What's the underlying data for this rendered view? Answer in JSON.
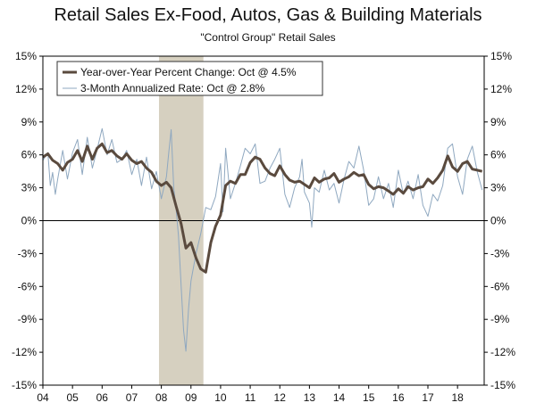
{
  "chart_data": {
    "type": "line",
    "title": "Retail Sales Ex-Food, Autos, Gas & Building Materials",
    "subtitle": "\"Control Group\" Retail Sales",
    "xlabel": "",
    "ylabel": "",
    "x_range": [
      2004.0,
      2018.9
    ],
    "ylim": [
      -15,
      15
    ],
    "y_ticks": [
      15,
      12,
      9,
      6,
      3,
      0,
      -3,
      -6,
      -9,
      -12,
      -15
    ],
    "y_tick_labels": [
      "15%",
      "12%",
      "9%",
      "6%",
      "3%",
      "0%",
      "-3%",
      "-6%",
      "-9%",
      "-12%",
      "-15%"
    ],
    "x_ticks": [
      2004,
      2005,
      2006,
      2007,
      2008,
      2009,
      2010,
      2011,
      2012,
      2013,
      2014,
      2015,
      2016,
      2017,
      2018
    ],
    "x_tick_labels": [
      "04",
      "05",
      "06",
      "07",
      "08",
      "09",
      "10",
      "11",
      "12",
      "13",
      "14",
      "15",
      "16",
      "17",
      "18"
    ],
    "recession_band": {
      "start": 2007.92,
      "end": 2009.42,
      "color": "#d6d0c0"
    },
    "zero_line": true,
    "legend_position": "top-left",
    "series": [
      {
        "name": "Year-over-Year Percent Change: Oct @ 4.5%",
        "color": "#5a4a3e",
        "width": 3,
        "points": [
          [
            2004.0,
            5.8
          ],
          [
            2004.17,
            6.1
          ],
          [
            2004.33,
            5.5
          ],
          [
            2004.5,
            5.2
          ],
          [
            2004.67,
            4.6
          ],
          [
            2004.83,
            5.3
          ],
          [
            2005.0,
            5.6
          ],
          [
            2005.17,
            6.4
          ],
          [
            2005.33,
            5.4
          ],
          [
            2005.5,
            6.8
          ],
          [
            2005.67,
            5.6
          ],
          [
            2005.83,
            6.6
          ],
          [
            2006.0,
            7.0
          ],
          [
            2006.17,
            6.2
          ],
          [
            2006.33,
            6.4
          ],
          [
            2006.5,
            5.9
          ],
          [
            2006.67,
            5.6
          ],
          [
            2006.83,
            6.1
          ],
          [
            2007.0,
            5.5
          ],
          [
            2007.17,
            5.2
          ],
          [
            2007.33,
            5.4
          ],
          [
            2007.5,
            4.8
          ],
          [
            2007.67,
            4.4
          ],
          [
            2007.83,
            3.6
          ],
          [
            2008.0,
            3.2
          ],
          [
            2008.17,
            3.5
          ],
          [
            2008.33,
            3.0
          ],
          [
            2008.5,
            1.3
          ],
          [
            2008.67,
            -0.3
          ],
          [
            2008.83,
            -2.5
          ],
          [
            2009.0,
            -2.0
          ],
          [
            2009.17,
            -3.4
          ],
          [
            2009.33,
            -4.4
          ],
          [
            2009.5,
            -4.7
          ],
          [
            2009.67,
            -2.0
          ],
          [
            2009.83,
            -0.5
          ],
          [
            2010.0,
            0.5
          ],
          [
            2010.17,
            3.2
          ],
          [
            2010.33,
            3.6
          ],
          [
            2010.5,
            3.4
          ],
          [
            2010.67,
            4.2
          ],
          [
            2010.83,
            4.2
          ],
          [
            2011.0,
            5.3
          ],
          [
            2011.17,
            5.8
          ],
          [
            2011.33,
            5.6
          ],
          [
            2011.5,
            4.8
          ],
          [
            2011.67,
            4.3
          ],
          [
            2011.83,
            4.1
          ],
          [
            2012.0,
            5.0
          ],
          [
            2012.17,
            4.2
          ],
          [
            2012.33,
            3.7
          ],
          [
            2012.5,
            3.5
          ],
          [
            2012.67,
            3.6
          ],
          [
            2012.83,
            3.3
          ],
          [
            2013.0,
            3.0
          ],
          [
            2013.17,
            3.9
          ],
          [
            2013.33,
            3.5
          ],
          [
            2013.5,
            3.8
          ],
          [
            2013.67,
            3.9
          ],
          [
            2013.83,
            4.3
          ],
          [
            2014.0,
            3.5
          ],
          [
            2014.17,
            3.8
          ],
          [
            2014.33,
            4.0
          ],
          [
            2014.5,
            4.4
          ],
          [
            2014.67,
            4.1
          ],
          [
            2014.83,
            4.2
          ],
          [
            2015.0,
            3.3
          ],
          [
            2015.17,
            2.9
          ],
          [
            2015.33,
            3.1
          ],
          [
            2015.5,
            3.0
          ],
          [
            2015.67,
            2.7
          ],
          [
            2015.83,
            2.4
          ],
          [
            2016.0,
            2.9
          ],
          [
            2016.17,
            2.5
          ],
          [
            2016.33,
            3.1
          ],
          [
            2016.5,
            2.8
          ],
          [
            2016.67,
            3.0
          ],
          [
            2016.83,
            3.1
          ],
          [
            2017.0,
            3.8
          ],
          [
            2017.17,
            3.4
          ],
          [
            2017.33,
            3.9
          ],
          [
            2017.5,
            4.6
          ],
          [
            2017.67,
            5.9
          ],
          [
            2017.83,
            4.9
          ],
          [
            2018.0,
            4.5
          ],
          [
            2018.17,
            5.2
          ],
          [
            2018.33,
            5.4
          ],
          [
            2018.5,
            4.7
          ],
          [
            2018.67,
            4.6
          ],
          [
            2018.83,
            4.5
          ]
        ]
      },
      {
        "name": "3-Month Annualized Rate: Oct @ 2.8%",
        "color": "#8fa8c0",
        "width": 1,
        "points": [
          [
            2004.0,
            5.5
          ],
          [
            2004.17,
            6.2
          ],
          [
            2004.25,
            3.2
          ],
          [
            2004.33,
            4.4
          ],
          [
            2004.42,
            2.4
          ],
          [
            2004.5,
            3.8
          ],
          [
            2004.67,
            6.4
          ],
          [
            2004.83,
            3.8
          ],
          [
            2005.0,
            6.2
          ],
          [
            2005.17,
            7.4
          ],
          [
            2005.33,
            4.2
          ],
          [
            2005.5,
            7.6
          ],
          [
            2005.67,
            4.8
          ],
          [
            2005.83,
            6.5
          ],
          [
            2006.0,
            8.4
          ],
          [
            2006.17,
            6.0
          ],
          [
            2006.33,
            7.4
          ],
          [
            2006.5,
            5.3
          ],
          [
            2006.67,
            5.6
          ],
          [
            2006.83,
            6.4
          ],
          [
            2007.0,
            4.2
          ],
          [
            2007.17,
            5.6
          ],
          [
            2007.33,
            3.2
          ],
          [
            2007.5,
            5.8
          ],
          [
            2007.67,
            2.9
          ],
          [
            2007.83,
            4.5
          ],
          [
            2008.0,
            2.0
          ],
          [
            2008.17,
            4.0
          ],
          [
            2008.25,
            6.2
          ],
          [
            2008.33,
            8.3
          ],
          [
            2008.42,
            3.0
          ],
          [
            2008.5,
            1.0
          ],
          [
            2008.58,
            -1.4
          ],
          [
            2008.67,
            -6.0
          ],
          [
            2008.75,
            -10.0
          ],
          [
            2008.83,
            -11.9
          ],
          [
            2008.92,
            -8.0
          ],
          [
            2009.0,
            -5.5
          ],
          [
            2009.17,
            -3.0
          ],
          [
            2009.33,
            -1.2
          ],
          [
            2009.5,
            1.2
          ],
          [
            2009.67,
            1.0
          ],
          [
            2009.83,
            2.2
          ],
          [
            2010.0,
            5.2
          ],
          [
            2010.08,
            0.8
          ],
          [
            2010.17,
            6.6
          ],
          [
            2010.33,
            2.0
          ],
          [
            2010.5,
            3.4
          ],
          [
            2010.67,
            5.0
          ],
          [
            2010.83,
            6.6
          ],
          [
            2011.0,
            6.1
          ],
          [
            2011.17,
            7.0
          ],
          [
            2011.33,
            3.4
          ],
          [
            2011.5,
            3.6
          ],
          [
            2011.67,
            4.8
          ],
          [
            2011.83,
            5.6
          ],
          [
            2012.0,
            6.6
          ],
          [
            2012.17,
            2.4
          ],
          [
            2012.33,
            1.2
          ],
          [
            2012.5,
            3.0
          ],
          [
            2012.67,
            4.0
          ],
          [
            2012.75,
            5.6
          ],
          [
            2012.83,
            2.6
          ],
          [
            2013.0,
            1.6
          ],
          [
            2013.08,
            -0.6
          ],
          [
            2013.17,
            3.0
          ],
          [
            2013.33,
            2.6
          ],
          [
            2013.5,
            4.6
          ],
          [
            2013.67,
            2.8
          ],
          [
            2013.83,
            3.4
          ],
          [
            2014.0,
            1.6
          ],
          [
            2014.17,
            3.8
          ],
          [
            2014.33,
            5.4
          ],
          [
            2014.5,
            4.8
          ],
          [
            2014.67,
            6.8
          ],
          [
            2014.83,
            4.6
          ],
          [
            2015.0,
            1.4
          ],
          [
            2015.17,
            2.0
          ],
          [
            2015.33,
            4.0
          ],
          [
            2015.5,
            2.0
          ],
          [
            2015.67,
            3.4
          ],
          [
            2015.83,
            1.2
          ],
          [
            2016.0,
            4.6
          ],
          [
            2016.17,
            2.4
          ],
          [
            2016.33,
            3.6
          ],
          [
            2016.5,
            2.0
          ],
          [
            2016.67,
            4.2
          ],
          [
            2016.83,
            1.4
          ],
          [
            2017.0,
            0.4
          ],
          [
            2017.17,
            2.4
          ],
          [
            2017.33,
            1.8
          ],
          [
            2017.5,
            3.2
          ],
          [
            2017.67,
            6.6
          ],
          [
            2017.83,
            7.0
          ],
          [
            2018.0,
            4.0
          ],
          [
            2018.17,
            2.4
          ],
          [
            2018.33,
            5.6
          ],
          [
            2018.5,
            6.8
          ],
          [
            2018.67,
            4.4
          ],
          [
            2018.83,
            2.8
          ]
        ]
      }
    ]
  }
}
